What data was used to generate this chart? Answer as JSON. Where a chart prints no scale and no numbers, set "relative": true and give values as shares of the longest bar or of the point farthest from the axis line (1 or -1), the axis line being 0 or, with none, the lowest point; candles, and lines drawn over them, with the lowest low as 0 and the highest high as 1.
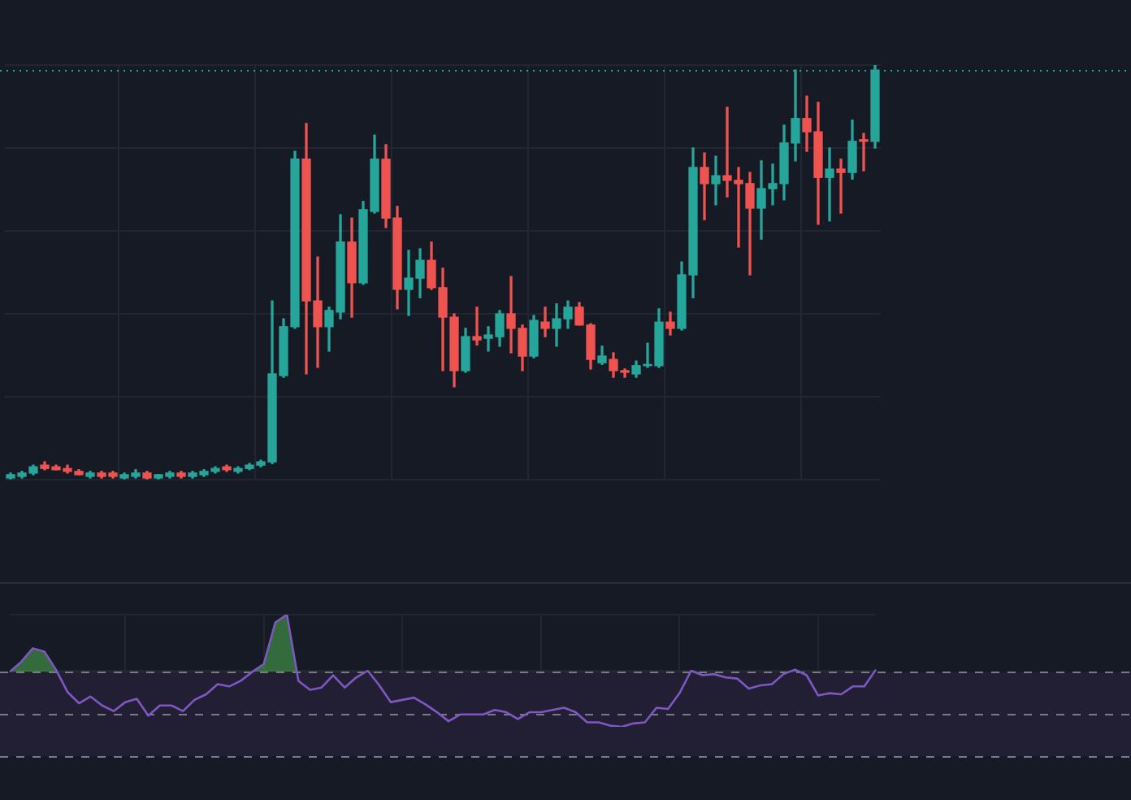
{
  "chart_data": [
    {
      "type": "candlestick",
      "relative": true,
      "grid": true,
      "tick_labels": false,
      "categories": [
        null,
        null,
        null,
        null,
        null,
        null,
        null,
        null,
        null,
        null,
        null,
        null,
        null,
        null,
        null,
        null,
        null,
        null,
        null,
        null,
        null,
        null,
        null,
        null,
        null,
        null,
        null,
        null,
        null,
        null,
        null,
        null,
        null,
        null,
        null,
        null,
        null,
        null,
        null,
        null,
        null,
        null,
        null,
        null,
        null,
        null,
        null,
        null,
        null,
        null,
        null,
        null,
        null,
        null,
        null,
        null,
        null,
        null,
        null,
        null,
        null,
        null,
        null,
        null,
        null,
        null,
        null,
        null,
        null,
        null,
        null,
        null,
        null,
        null,
        null,
        null,
        null
      ],
      "ohlc": [
        [
          0.004,
          0.016,
          0,
          0.012
        ],
        [
          0.008,
          0.02,
          0.004,
          0.016
        ],
        [
          0.016,
          0.035,
          0.012,
          0.031
        ],
        [
          0.035,
          0.043,
          0.024,
          0.027
        ],
        [
          0.031,
          0.035,
          0.024,
          0.024
        ],
        [
          0.027,
          0.035,
          0.016,
          0.02
        ],
        [
          0.02,
          0.024,
          0.012,
          0.012
        ],
        [
          0.008,
          0.02,
          0.004,
          0.016
        ],
        [
          0.016,
          0.02,
          0.004,
          0.008
        ],
        [
          0.016,
          0.02,
          0.004,
          0.008
        ],
        [
          0.004,
          0.016,
          0,
          0.012
        ],
        [
          0.008,
          0.024,
          0.004,
          0.016
        ],
        [
          0.016,
          0.02,
          0,
          0.004
        ],
        [
          0.004,
          0.012,
          0,
          0.012
        ],
        [
          0.008,
          0.02,
          0.004,
          0.016
        ],
        [
          0.016,
          0.02,
          0.004,
          0.008
        ],
        [
          0.008,
          0.02,
          0.004,
          0.016
        ],
        [
          0.012,
          0.024,
          0.008,
          0.02
        ],
        [
          0.02,
          0.031,
          0.016,
          0.027
        ],
        [
          0.031,
          0.035,
          0.02,
          0.024
        ],
        [
          0.02,
          0.031,
          0.016,
          0.027
        ],
        [
          0.027,
          0.039,
          0.024,
          0.035
        ],
        [
          0.035,
          0.047,
          0.031,
          0.043
        ],
        [
          0.043,
          0.431,
          0.039,
          0.255
        ],
        [
          0.251,
          0.388,
          0.247,
          0.369
        ],
        [
          0.369,
          0.792,
          0.365,
          0.773
        ],
        [
          0.773,
          0.859,
          0.255,
          0.431
        ],
        [
          0.431,
          0.537,
          0.271,
          0.369
        ],
        [
          0.369,
          0.416,
          0.31,
          0.408
        ],
        [
          0.404,
          0.639,
          0.388,
          0.573
        ],
        [
          0.573,
          0.631,
          0.392,
          0.475
        ],
        [
          0.475,
          0.671,
          0.471,
          0.651
        ],
        [
          0.647,
          0.831,
          0.643,
          0.773
        ],
        [
          0.773,
          0.808,
          0.608,
          0.631
        ],
        [
          0.631,
          0.659,
          0.412,
          0.459
        ],
        [
          0.459,
          0.553,
          0.396,
          0.486
        ],
        [
          0.486,
          0.557,
          0.439,
          0.529
        ],
        [
          0.529,
          0.573,
          0.459,
          0.463
        ],
        [
          0.463,
          0.51,
          0.263,
          0.392
        ],
        [
          0.392,
          0.4,
          0.224,
          0.263
        ],
        [
          0.263,
          0.365,
          0.259,
          0.345
        ],
        [
          0.345,
          0.416,
          0.325,
          0.337
        ],
        [
          0.341,
          0.369,
          0.31,
          0.349
        ],
        [
          0.345,
          0.408,
          0.322,
          0.4
        ],
        [
          0.4,
          0.49,
          0.306,
          0.365
        ],
        [
          0.365,
          0.373,
          0.263,
          0.298
        ],
        [
          0.298,
          0.396,
          0.294,
          0.384
        ],
        [
          0.38,
          0.416,
          0.345,
          0.365
        ],
        [
          0.365,
          0.424,
          0.322,
          0.388
        ],
        [
          0.388,
          0.431,
          0.365,
          0.416
        ],
        [
          0.416,
          0.427,
          0.373,
          0.373
        ],
        [
          0.373,
          0.376,
          0.267,
          0.29
        ],
        [
          0.282,
          0.322,
          0.278,
          0.298
        ],
        [
          0.29,
          0.306,
          0.247,
          0.263
        ],
        [
          0.263,
          0.267,
          0.247,
          0.259
        ],
        [
          0.255,
          0.286,
          0.247,
          0.275
        ],
        [
          0.275,
          0.329,
          0.271,
          0.278
        ],
        [
          0.275,
          0.412,
          0.271,
          0.38
        ],
        [
          0.38,
          0.404,
          0.349,
          0.365
        ],
        [
          0.365,
          0.525,
          0.361,
          0.494
        ],
        [
          0.494,
          0.8,
          0.439,
          0.753
        ],
        [
          0.753,
          0.788,
          0.627,
          0.714
        ],
        [
          0.714,
          0.78,
          0.663,
          0.733
        ],
        [
          0.733,
          0.898,
          0.682,
          0.722
        ],
        [
          0.722,
          0.753,
          0.561,
          0.714
        ],
        [
          0.714,
          0.741,
          0.494,
          0.655
        ],
        [
          0.655,
          0.769,
          0.58,
          0.702
        ],
        [
          0.702,
          0.761,
          0.663,
          0.714
        ],
        [
          0.714,
          0.855,
          0.675,
          0.812
        ],
        [
          0.812,
          0.988,
          0.769,
          0.871
        ],
        [
          0.871,
          0.925,
          0.792,
          0.839
        ],
        [
          0.839,
          0.91,
          0.616,
          0.729
        ],
        [
          0.729,
          0.8,
          0.624,
          0.749
        ],
        [
          0.749,
          0.773,
          0.643,
          0.741
        ],
        [
          0.741,
          0.867,
          0.725,
          0.816
        ],
        [
          0.82,
          0.835,
          0.745,
          0.816
        ],
        [
          0.816,
          1,
          0.8,
          0.988
        ]
      ],
      "colors": [
        "#26a69a",
        "#26a69a",
        "#26a69a",
        "#ef5350",
        "#ef5350",
        "#ef5350",
        "#ef5350",
        "#26a69a",
        "#ef5350",
        "#ef5350",
        "#26a69a",
        "#26a69a",
        "#ef5350",
        "#26a69a",
        "#26a69a",
        "#ef5350",
        "#26a69a",
        "#26a69a",
        "#26a69a",
        "#ef5350",
        "#26a69a",
        "#26a69a",
        "#26a69a",
        "#26a69a",
        "#26a69a",
        "#26a69a",
        "#ef5350",
        "#ef5350",
        "#26a69a",
        "#26a69a",
        "#ef5350",
        "#26a69a",
        "#26a69a",
        "#ef5350",
        "#ef5350",
        "#26a69a",
        "#26a69a",
        "#ef5350",
        "#ef5350",
        "#ef5350",
        "#26a69a",
        "#ef5350",
        "#26a69a",
        "#26a69a",
        "#ef5350",
        "#ef5350",
        "#26a69a",
        "#ef5350",
        "#26a69a",
        "#26a69a",
        "#ef5350",
        "#ef5350",
        "#26a69a",
        "#ef5350",
        "#ef5350",
        "#26a69a",
        "#26a69a",
        "#26a69a",
        "#ef5350",
        "#26a69a",
        "#26a69a",
        "#ef5350",
        "#26a69a",
        "#ef5350",
        "#ef5350",
        "#ef5350",
        "#26a69a",
        "#26a69a",
        "#26a69a",
        "#26a69a",
        "#ef5350",
        "#ef5350",
        "#26a69a",
        "#ef5350",
        "#26a69a",
        "#ef5350",
        "#26a69a"
      ],
      "ref_lines": [
        {
          "axis": "y",
          "value": 0.988,
          "color": "#26a69a",
          "line_style": "dotted"
        }
      ]
    },
    {
      "type": "line",
      "relative": true,
      "grid": true,
      "tick_labels": false,
      "marker": "none",
      "categories": [
        null,
        null,
        null,
        null,
        null,
        null,
        null,
        null,
        null,
        null,
        null,
        null,
        null,
        null,
        null,
        null,
        null,
        null,
        null,
        null,
        null,
        null,
        null,
        null,
        null,
        null,
        null,
        null,
        null,
        null,
        null,
        null,
        null,
        null,
        null,
        null,
        null,
        null,
        null,
        null,
        null,
        null,
        null,
        null,
        null,
        null,
        null,
        null,
        null,
        null,
        null,
        null,
        null,
        null,
        null,
        null,
        null,
        null,
        null,
        null,
        null,
        null,
        null,
        null,
        null,
        null,
        null,
        null,
        null,
        null,
        null,
        null,
        null,
        null,
        null,
        null
      ],
      "series": [
        {
          "color": "#7e57c2",
          "values": [
            0.49,
            0.58,
            0.7,
            0.67,
            0.51,
            0.31,
            0.21,
            0.27,
            0.19,
            0.14,
            0.22,
            0.25,
            0.1,
            0.19,
            0.19,
            0.14,
            0.24,
            0.29,
            0.38,
            0.36,
            0.41,
            0.49,
            0.56,
            0.93,
            1.0,
            0.41,
            0.33,
            0.35,
            0.46,
            0.35,
            0.44,
            0.5,
            0.37,
            0.22,
            0.24,
            0.26,
            0.2,
            0.13,
            0.05,
            0.11,
            0.11,
            0.11,
            0.15,
            0.13,
            0.07,
            0.13,
            0.13,
            0.15,
            0.17,
            0.13,
            0.04,
            0.04,
            0.01,
            0.0,
            0.03,
            0.04,
            0.17,
            0.16,
            0.3,
            0.5,
            0.46,
            0.47,
            0.44,
            0.43,
            0.34,
            0.37,
            0.38,
            0.47,
            0.51,
            0.46,
            0.28,
            0.3,
            0.29,
            0.36,
            0.36,
            0.51
          ]
        }
      ],
      "bands": [
        {
          "axis": "y",
          "from": -0.26,
          "to": 0.49,
          "color": "#221f35"
        }
      ],
      "ref_lines": [
        {
          "axis": "y",
          "value": 0.49,
          "color": "#787b86",
          "line_style": "dashed"
        },
        {
          "axis": "y",
          "value": 0.11,
          "color": "#787b86",
          "line_style": "dashed"
        },
        {
          "axis": "y",
          "value": -0.26,
          "color": "#787b86",
          "line_style": "dashed"
        }
      ]
    }
  ]
}
